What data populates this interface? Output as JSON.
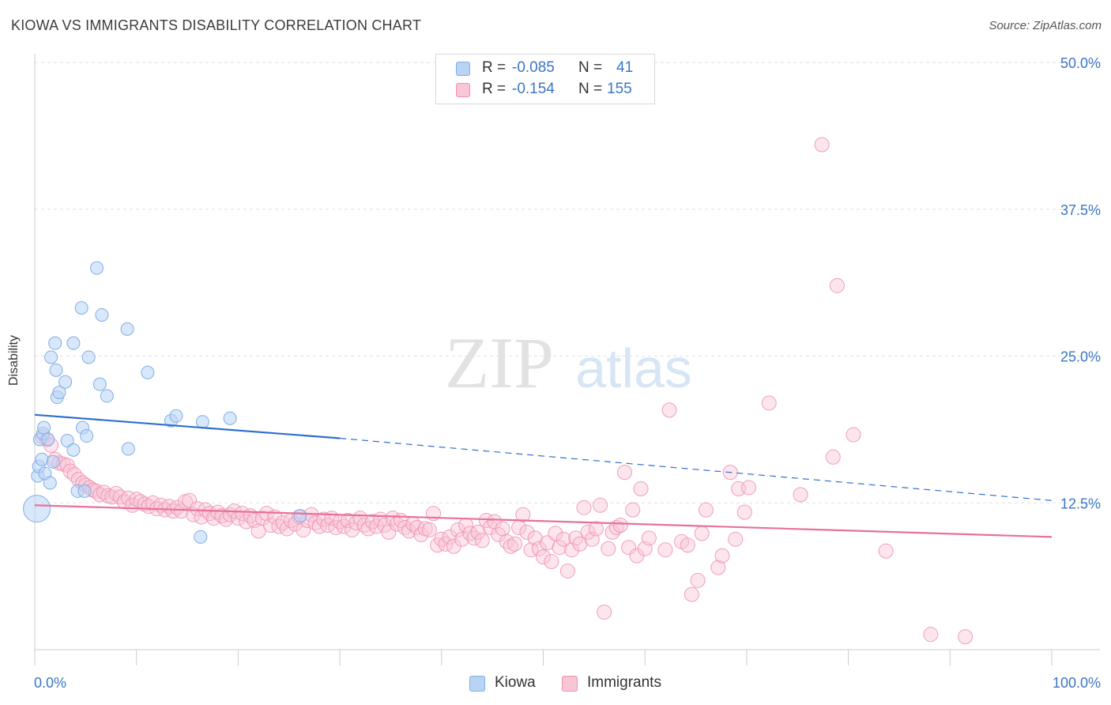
{
  "title": "KIOWA VS IMMIGRANTS DISABILITY CORRELATION CHART",
  "source": "Source: ZipAtlas.com",
  "watermark": {
    "zip": "ZIP",
    "atlas": "atlas"
  },
  "stats": {
    "r_label": "R =",
    "n_label": "N =",
    "rows": [
      {
        "r": "-0.085",
        "n": "41",
        "fill": "#b9d3f5",
        "stroke": "#7eaee6"
      },
      {
        "r": "-0.154",
        "n": "155",
        "fill": "#f9c6d6",
        "stroke": "#ef8fae"
      }
    ]
  },
  "legend": [
    {
      "label": "Kiowa",
      "fill": "#b9d3f5",
      "stroke": "#7eaee6"
    },
    {
      "label": "Immigrants",
      "fill": "#f9c6d6",
      "stroke": "#ef8fae"
    }
  ],
  "colors": {
    "kiowa_line": "#2f6fcf",
    "immigrants_line": "#e8709b",
    "tick_label": "#3b76c4",
    "grid": "#e1e1e1"
  },
  "chart_data": {
    "type": "scatter",
    "ylabel": "Disability",
    "xlim": [
      0,
      100
    ],
    "ylim": [
      0,
      52
    ],
    "x_tick_labels": [
      "0.0%",
      "100.0%"
    ],
    "y_ticks": [
      12.5,
      25,
      37.5,
      50
    ],
    "y_tick_labels": [
      "12.5%",
      "25.0%",
      "37.5%",
      "50.0%"
    ],
    "grid": "horizontal dashed",
    "series": [
      {
        "name": "Kiowa",
        "trend": {
          "x": [
            0,
            30,
            100
          ],
          "y": [
            20.0,
            18.0,
            12.7
          ],
          "solid_until": 30
        },
        "points": [
          [
            0.3,
            14.8
          ],
          [
            0.4,
            15.6
          ],
          [
            0.5,
            17.9
          ],
          [
            0.7,
            16.2
          ],
          [
            0.8,
            18.4
          ],
          [
            0.9,
            18.9
          ],
          [
            1.0,
            15.0
          ],
          [
            1.3,
            17.9
          ],
          [
            1.5,
            14.2
          ],
          [
            1.6,
            24.9
          ],
          [
            1.8,
            16.0
          ],
          [
            2.0,
            26.1
          ],
          [
            2.1,
            23.8
          ],
          [
            2.2,
            21.5
          ],
          [
            2.4,
            21.9
          ],
          [
            3.0,
            22.8
          ],
          [
            3.2,
            17.8
          ],
          [
            3.8,
            26.1
          ],
          [
            3.8,
            17.0
          ],
          [
            4.2,
            13.5
          ],
          [
            4.6,
            29.1
          ],
          [
            4.7,
            18.9
          ],
          [
            4.9,
            13.5
          ],
          [
            5.1,
            18.2
          ],
          [
            5.3,
            24.9
          ],
          [
            6.1,
            32.5
          ],
          [
            6.4,
            22.6
          ],
          [
            6.6,
            28.5
          ],
          [
            7.1,
            21.6
          ],
          [
            9.1,
            27.3
          ],
          [
            9.2,
            17.1
          ],
          [
            11.1,
            23.6
          ],
          [
            13.4,
            19.5
          ],
          [
            13.9,
            19.9
          ],
          [
            16.3,
            9.6
          ],
          [
            16.5,
            19.4
          ],
          [
            19.2,
            19.7
          ],
          [
            26.1,
            11.4
          ]
        ],
        "big_points": [
          [
            0.2,
            12.0
          ]
        ]
      },
      {
        "name": "Immigrants",
        "trend": {
          "x": [
            0,
            100
          ],
          "y": [
            12.3,
            9.6
          ]
        },
        "points": [
          [
            0.8,
            18.1
          ],
          [
            1.2,
            17.9
          ],
          [
            1.6,
            17.4
          ],
          [
            2.0,
            16.2
          ],
          [
            2.4,
            15.9
          ],
          [
            2.8,
            15.8
          ],
          [
            3.2,
            15.7
          ],
          [
            3.5,
            15.2
          ],
          [
            3.9,
            14.9
          ],
          [
            4.3,
            14.5
          ],
          [
            4.7,
            14.2
          ],
          [
            5.0,
            14.0
          ],
          [
            5.4,
            13.8
          ],
          [
            5.7,
            13.6
          ],
          [
            6.0,
            13.5
          ],
          [
            6.4,
            13.2
          ],
          [
            6.8,
            13.4
          ],
          [
            7.2,
            13.1
          ],
          [
            7.6,
            13.0
          ],
          [
            8.0,
            13.3
          ],
          [
            8.4,
            13.0
          ],
          [
            8.8,
            12.6
          ],
          [
            9.2,
            12.9
          ],
          [
            9.6,
            12.3
          ],
          [
            10.0,
            12.8
          ],
          [
            10.4,
            12.6
          ],
          [
            10.8,
            12.4
          ],
          [
            11.2,
            12.2
          ],
          [
            11.6,
            12.5
          ],
          [
            12.0,
            12.0
          ],
          [
            12.4,
            12.3
          ],
          [
            12.8,
            11.9
          ],
          [
            13.2,
            12.2
          ],
          [
            13.6,
            11.8
          ],
          [
            14.0,
            12.1
          ],
          [
            14.4,
            11.8
          ],
          [
            14.8,
            12.6
          ],
          [
            15.2,
            12.7
          ],
          [
            15.6,
            11.5
          ],
          [
            16.0,
            12.0
          ],
          [
            16.4,
            11.3
          ],
          [
            16.8,
            11.9
          ],
          [
            17.2,
            11.6
          ],
          [
            17.6,
            11.2
          ],
          [
            18.0,
            11.7
          ],
          [
            18.4,
            11.4
          ],
          [
            18.8,
            11.1
          ],
          [
            19.2,
            11.5
          ],
          [
            19.6,
            11.8
          ],
          [
            20.0,
            11.2
          ],
          [
            20.4,
            11.6
          ],
          [
            20.8,
            10.9
          ],
          [
            21.2,
            11.4
          ],
          [
            21.6,
            11.0
          ],
          [
            22.0,
            10.1
          ],
          [
            22.4,
            11.2
          ],
          [
            22.8,
            11.6
          ],
          [
            23.2,
            10.6
          ],
          [
            23.6,
            11.3
          ],
          [
            24.0,
            10.5
          ],
          [
            24.4,
            10.8
          ],
          [
            24.8,
            10.3
          ],
          [
            25.2,
            11.0
          ],
          [
            25.6,
            10.7
          ],
          [
            26.0,
            11.3
          ],
          [
            26.4,
            10.2
          ],
          [
            26.8,
            11.0
          ],
          [
            27.2,
            11.5
          ],
          [
            27.6,
            10.8
          ],
          [
            28.0,
            10.5
          ],
          [
            28.4,
            11.1
          ],
          [
            28.8,
            10.6
          ],
          [
            29.2,
            11.2
          ],
          [
            29.6,
            10.4
          ],
          [
            30.0,
            10.9
          ],
          [
            30.4,
            10.5
          ],
          [
            30.8,
            11.0
          ],
          [
            31.2,
            10.2
          ],
          [
            31.6,
            10.8
          ],
          [
            32.0,
            11.2
          ],
          [
            32.4,
            10.6
          ],
          [
            32.8,
            10.3
          ],
          [
            33.2,
            10.9
          ],
          [
            33.6,
            10.5
          ],
          [
            34.0,
            11.1
          ],
          [
            34.4,
            10.6
          ],
          [
            34.8,
            10.0
          ],
          [
            35.2,
            11.2
          ],
          [
            35.6,
            10.7
          ],
          [
            36.0,
            11.0
          ],
          [
            36.4,
            10.4
          ],
          [
            36.8,
            10.1
          ],
          [
            37.2,
            10.7
          ],
          [
            37.6,
            10.4
          ],
          [
            38.0,
            9.8
          ],
          [
            38.4,
            10.3
          ],
          [
            38.8,
            10.2
          ],
          [
            39.2,
            11.6
          ],
          [
            39.6,
            8.9
          ],
          [
            40.0,
            9.4
          ],
          [
            40.4,
            9.0
          ],
          [
            40.8,
            9.6
          ],
          [
            41.2,
            8.8
          ],
          [
            41.6,
            10.2
          ],
          [
            42.0,
            9.4
          ],
          [
            42.4,
            10.6
          ],
          [
            42.8,
            9.9
          ],
          [
            43.2,
            9.5
          ],
          [
            43.6,
            10.0
          ],
          [
            44.0,
            9.3
          ],
          [
            44.4,
            11.0
          ],
          [
            44.8,
            10.4
          ],
          [
            45.2,
            10.9
          ],
          [
            45.6,
            9.8
          ],
          [
            46.0,
            10.3
          ],
          [
            46.4,
            9.2
          ],
          [
            46.8,
            8.8
          ],
          [
            47.2,
            9.0
          ],
          [
            47.6,
            10.4
          ],
          [
            48.0,
            11.5
          ],
          [
            48.4,
            10.0
          ],
          [
            48.8,
            8.5
          ],
          [
            49.2,
            9.5
          ],
          [
            49.6,
            8.6
          ],
          [
            50.0,
            7.9
          ],
          [
            50.4,
            9.1
          ],
          [
            50.8,
            7.5
          ],
          [
            51.2,
            9.9
          ],
          [
            51.6,
            8.7
          ],
          [
            52.0,
            9.4
          ],
          [
            52.4,
            6.7
          ],
          [
            52.8,
            8.5
          ],
          [
            53.2,
            9.5
          ],
          [
            53.6,
            9.0
          ],
          [
            54.0,
            12.1
          ],
          [
            54.4,
            10.0
          ],
          [
            54.8,
            9.4
          ],
          [
            55.2,
            10.3
          ],
          [
            55.6,
            12.3
          ],
          [
            56.0,
            3.2
          ],
          [
            56.4,
            8.6
          ],
          [
            56.8,
            10.0
          ],
          [
            57.2,
            10.4
          ],
          [
            57.6,
            10.6
          ],
          [
            58.0,
            15.1
          ],
          [
            58.4,
            8.7
          ],
          [
            58.8,
            11.9
          ],
          [
            59.2,
            8.0
          ],
          [
            59.6,
            13.7
          ],
          [
            60.0,
            8.6
          ],
          [
            60.4,
            9.5
          ],
          [
            62.0,
            8.5
          ],
          [
            62.4,
            20.4
          ],
          [
            63.6,
            9.2
          ],
          [
            64.2,
            8.9
          ],
          [
            64.6,
            4.7
          ],
          [
            65.2,
            5.9
          ],
          [
            65.6,
            9.9
          ],
          [
            66.0,
            11.9
          ],
          [
            67.2,
            7.0
          ],
          [
            67.6,
            8.0
          ],
          [
            68.4,
            15.1
          ],
          [
            68.9,
            9.4
          ],
          [
            69.2,
            13.7
          ],
          [
            69.8,
            11.7
          ],
          [
            70.2,
            13.8
          ],
          [
            72.2,
            21.0
          ],
          [
            75.3,
            13.2
          ],
          [
            77.4,
            43.0
          ],
          [
            78.5,
            16.4
          ],
          [
            78.9,
            31.0
          ],
          [
            80.5,
            18.3
          ],
          [
            83.7,
            8.4
          ],
          [
            88.1,
            1.3
          ],
          [
            91.5,
            1.1
          ]
        ]
      }
    ]
  }
}
